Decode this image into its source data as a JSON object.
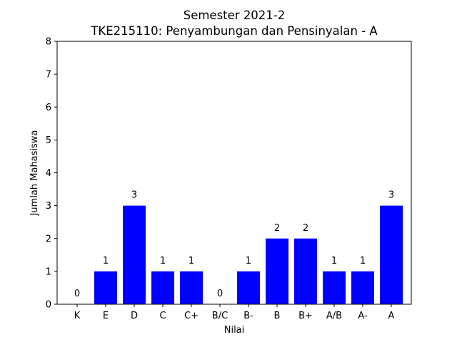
{
  "chart_data": {
    "type": "bar",
    "title": "Semester 2021-2",
    "subtitle": "TKE215110: Penyambungan dan Pensinyalan - A",
    "xlabel": "Nilai",
    "ylabel": "Jumlah Mahasiswa",
    "categories": [
      "K",
      "E",
      "D",
      "C",
      "C+",
      "B/C",
      "B-",
      "B",
      "B+",
      "A/B",
      "A-",
      "A"
    ],
    "values": [
      0,
      1,
      3,
      1,
      1,
      0,
      1,
      2,
      2,
      1,
      1,
      3
    ],
    "ylim": [
      0,
      8
    ],
    "yticks": [
      0,
      1,
      2,
      3,
      4,
      5,
      6,
      7,
      8
    ],
    "bar_color": "#0000ff",
    "grid": false,
    "show_value_labels": true
  }
}
